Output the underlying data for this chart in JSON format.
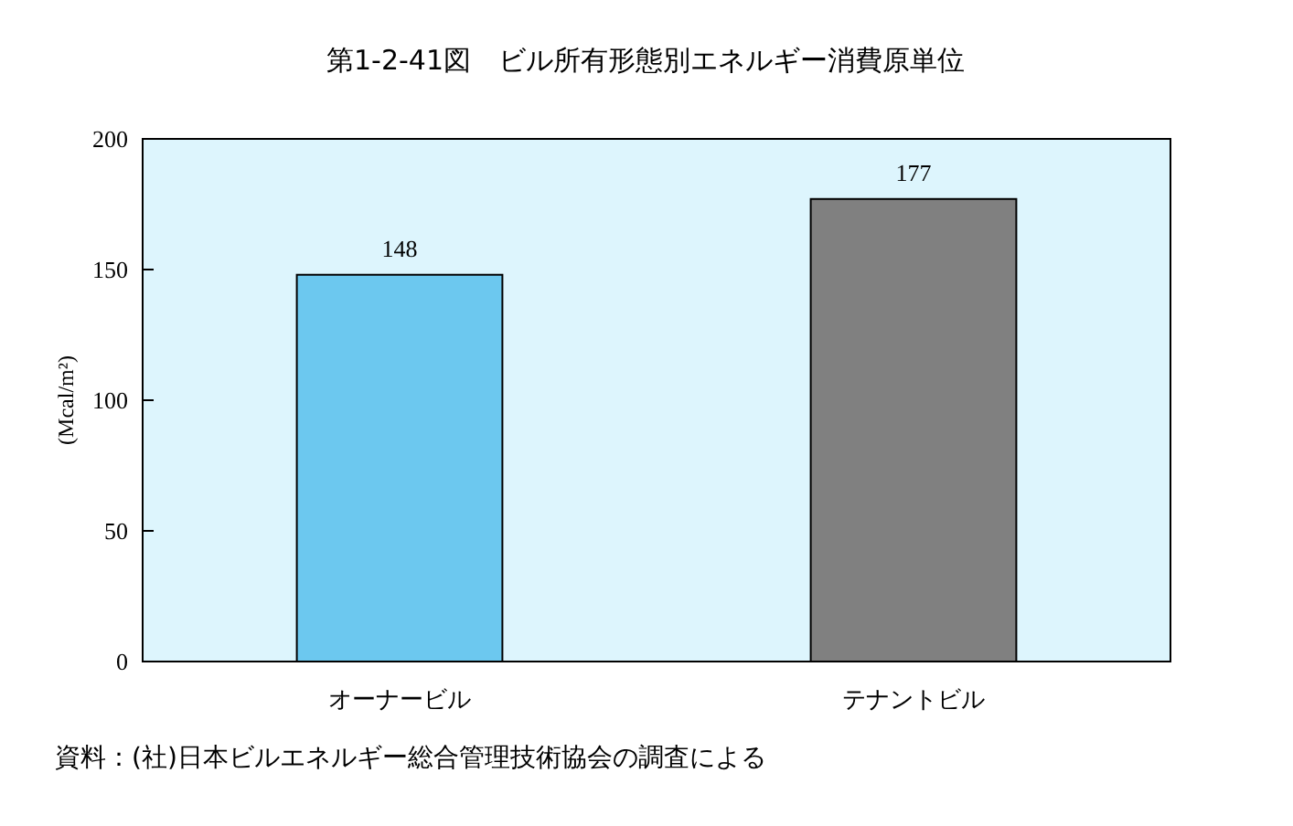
{
  "chart_data": {
    "type": "bar",
    "title": "第1-2-41図　ビル所有形態別エネルギー消費原単位",
    "ylabel": "(Mcal/m²)",
    "categories": [
      "オーナービル",
      "テナントビル"
    ],
    "values": [
      148,
      177
    ],
    "colors": [
      "#6cc8ef",
      "#808080"
    ],
    "ylim": [
      0,
      200
    ],
    "yticks": [
      0,
      50,
      100,
      150,
      200
    ],
    "data_labels": true,
    "grid": false,
    "annotations": [
      "資料：(社)日本ビルエネルギー総合管理技術協会の調査による"
    ]
  }
}
